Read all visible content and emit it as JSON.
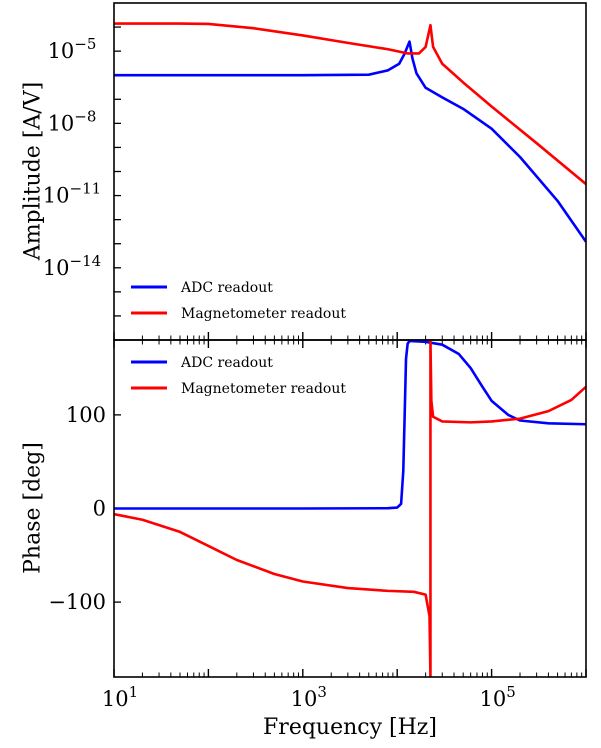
{
  "chart_data": [
    {
      "type": "line",
      "panel": "amplitude",
      "ylabel": "Amplitude [A/V]",
      "xscale": "log",
      "yscale": "log",
      "xlim": [
        10,
        1000000
      ],
      "ylim": [
        1e-17,
        0.001
      ],
      "yticks": [
        {
          "value": 1e-05,
          "base": "10",
          "exp": "−5"
        },
        {
          "value": 1e-08,
          "base": "10",
          "exp": "−8"
        },
        {
          "value": 1e-11,
          "base": "10",
          "exp": "−11"
        },
        {
          "value": 1e-14,
          "base": "10",
          "exp": "−14"
        }
      ],
      "legend": {
        "placement": "lower-left",
        "entries": [
          "ADC readout",
          "Magnetometer readout"
        ]
      },
      "series": [
        {
          "name": "ADC readout",
          "color": "#0000ff",
          "points": [
            [
              10,
              1e-06
            ],
            [
              100,
              1e-06
            ],
            [
              1000,
              1e-06
            ],
            [
              5000,
              1.05e-06
            ],
            [
              8000,
              1.6e-06
            ],
            [
              10500,
              3e-06
            ],
            [
              12000,
              8e-06
            ],
            [
              13500,
              2.5e-05
            ],
            [
              14500,
              5e-06
            ],
            [
              16000,
              1.2e-06
            ],
            [
              20000,
              3e-07
            ],
            [
              30000,
              1.2e-07
            ],
            [
              50000,
              4e-08
            ],
            [
              100000,
              6e-09
            ],
            [
              200000,
              4e-10
            ],
            [
              500000,
              6e-12
            ],
            [
              1000000,
              1.2e-13
            ]
          ]
        },
        {
          "name": "Magnetometer readout",
          "color": "#ff0000",
          "points": [
            [
              10,
              0.00014
            ],
            [
              50,
              0.00014
            ],
            [
              100,
              0.000135
            ],
            [
              300,
              9e-05
            ],
            [
              1000,
              4.5e-05
            ],
            [
              3000,
              2.2e-05
            ],
            [
              8000,
              1.2e-05
            ],
            [
              13000,
              8e-06
            ],
            [
              17000,
              8e-06
            ],
            [
              20000,
              1.5e-05
            ],
            [
              22500,
              0.00012
            ],
            [
              24000,
              1.5e-05
            ],
            [
              30000,
              3e-06
            ],
            [
              50000,
              5e-07
            ],
            [
              100000,
              5e-08
            ],
            [
              300000,
              1.5e-09
            ],
            [
              1000000,
              3e-11
            ]
          ]
        }
      ]
    },
    {
      "type": "line",
      "panel": "phase",
      "xlabel": "Frequency [Hz]",
      "ylabel": "Phase [deg]",
      "xscale": "log",
      "xlim": [
        10,
        1000000
      ],
      "ylim": [
        -180,
        180
      ],
      "yticks": [
        {
          "value": 100,
          "label": "100"
        },
        {
          "value": 0,
          "label": "0"
        },
        {
          "value": -100,
          "label": "−100"
        }
      ],
      "xticks": [
        {
          "value": 10,
          "base": "10",
          "exp": "1"
        },
        {
          "value": 1000,
          "base": "10",
          "exp": "3"
        },
        {
          "value": 100000,
          "base": "10",
          "exp": "5"
        }
      ],
      "legend": {
        "placement": "top-left",
        "entries": [
          "ADC readout",
          "Magnetometer readout"
        ]
      },
      "series": [
        {
          "name": "ADC readout",
          "color": "#0000ff",
          "points": [
            [
              10,
              0
            ],
            [
              1000,
              0
            ],
            [
              8000,
              0.3
            ],
            [
              10000,
              1
            ],
            [
              11000,
              5
            ],
            [
              11600,
              40
            ],
            [
              12000,
              100
            ],
            [
              12400,
              160
            ],
            [
              12900,
              176
            ],
            [
              13500,
              179
            ],
            [
              20000,
              178
            ],
            [
              30000,
              175
            ],
            [
              45000,
              165
            ],
            [
              60000,
              150
            ],
            [
              80000,
              130
            ],
            [
              100000,
              115
            ],
            [
              150000,
              100
            ],
            [
              200000,
              94
            ],
            [
              400000,
              91
            ],
            [
              1000000,
              90
            ]
          ]
        },
        {
          "name": "Magnetometer readout",
          "color": "#ff0000",
          "points": [
            [
              10,
              -6
            ],
            [
              20,
              -12
            ],
            [
              50,
              -25
            ],
            [
              100,
              -40
            ],
            [
              200,
              -55
            ],
            [
              500,
              -70
            ],
            [
              1000,
              -78
            ],
            [
              3000,
              -85
            ],
            [
              8000,
              -88
            ],
            [
              15000,
              -89
            ],
            [
              20000,
              -92
            ],
            [
              22000,
              -115
            ],
            [
              22500,
              -180
            ],
            [
              22500,
              180
            ],
            [
              23000,
              115
            ],
            [
              24000,
              98
            ],
            [
              30000,
              93
            ],
            [
              60000,
              92
            ],
            [
              100000,
              93
            ],
            [
              200000,
              96
            ],
            [
              400000,
              104
            ],
            [
              700000,
              116
            ],
            [
              1000000,
              130
            ]
          ]
        }
      ]
    }
  ]
}
